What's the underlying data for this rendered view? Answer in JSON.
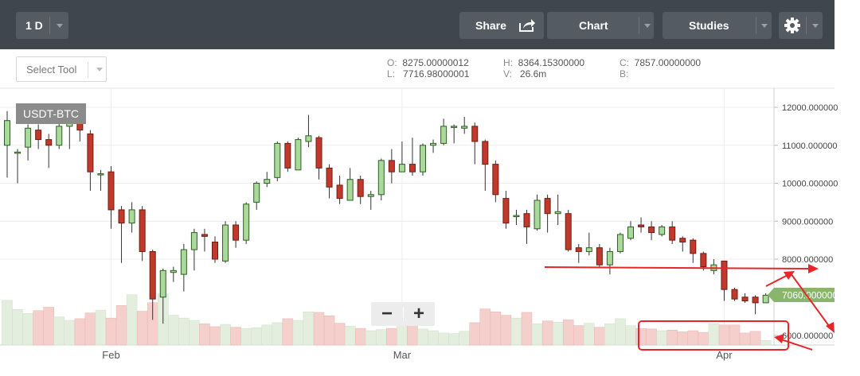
{
  "toolbar": {
    "interval_label": "1 D",
    "share_label": "Share",
    "chart_label": "Chart",
    "studies_label": "Studies"
  },
  "select_tool": {
    "placeholder": "Select Tool"
  },
  "ohlc": {
    "o_label": "O:",
    "o_value": "8275.00000012",
    "l_label": "L:",
    "l_value": "7716.98000001",
    "h_label": "H:",
    "h_value": "8364.15300000",
    "v_label": "V:",
    "v_value": "26.6m",
    "c_label": "C:",
    "c_value": "7857.00000000",
    "b_label": "B:",
    "b_value": ""
  },
  "zoom": {
    "minus": "−",
    "plus": "+"
  },
  "colors": {
    "up": "#a9d99b",
    "up_border": "#2f5e23",
    "down": "#c0392b",
    "down_border": "#6e1d14",
    "vol_up": "#e3eedf",
    "vol_down": "#f4cfcc",
    "annotation": "#e8262a",
    "badge": "#8ab56d"
  },
  "chart_data": {
    "type": "candlestick",
    "symbol": "USDT-BTC",
    "price_badge": "7060.000000",
    "y_ticks": [
      {
        "value": 12000,
        "label": "12000.000000"
      },
      {
        "value": 11000,
        "label": "11000.000000"
      },
      {
        "value": 10000,
        "label": "10000.000000"
      },
      {
        "value": 9000,
        "label": "9000.000000"
      },
      {
        "value": 8000,
        "label": "8000.000000"
      },
      {
        "value": 6000,
        "label": "6000.000000"
      }
    ],
    "x_labels": [
      {
        "index": 10,
        "label": "Feb"
      },
      {
        "index": 38,
        "label": "Mar"
      },
      {
        "index": 69,
        "label": "Apr"
      }
    ],
    "candles": [
      [
        11000,
        11650,
        10150,
        11900
      ],
      [
        10800,
        10820,
        10000,
        10900
      ],
      [
        10950,
        11450,
        10600,
        11550
      ],
      [
        11400,
        11150,
        10900,
        11550
      ],
      [
        11150,
        11000,
        10400,
        11300
      ],
      [
        11000,
        11500,
        10900,
        11600
      ],
      [
        11500,
        11600,
        10900,
        11700
      ],
      [
        11850,
        11400,
        11100,
        12000
      ],
      [
        11300,
        10300,
        9800,
        11400
      ],
      [
        10250,
        10250,
        9800,
        10350
      ],
      [
        10300,
        9300,
        8800,
        10450
      ],
      [
        9300,
        8950,
        7900,
        9400
      ],
      [
        8950,
        9300,
        8700,
        9500
      ],
      [
        9300,
        8200,
        7950,
        9400
      ],
      [
        8200,
        6950,
        6400,
        8250
      ],
      [
        7000,
        7700,
        6300,
        7750
      ],
      [
        7650,
        7700,
        7400,
        7800
      ],
      [
        7600,
        8250,
        7150,
        8400
      ],
      [
        8250,
        8700,
        7700,
        8800
      ],
      [
        8650,
        8600,
        8200,
        8800
      ],
      [
        8450,
        8000,
        7900,
        8600
      ],
      [
        7950,
        8900,
        7900,
        9000
      ],
      [
        8900,
        8500,
        8300,
        9000
      ],
      [
        8500,
        9450,
        8400,
        9500
      ],
      [
        9500,
        10000,
        9300,
        10050
      ],
      [
        10000,
        10100,
        9900,
        10300
      ],
      [
        10150,
        11050,
        10050,
        11100
      ],
      [
        11050,
        10400,
        10300,
        11100
      ],
      [
        10350,
        11150,
        10350,
        11200
      ],
      [
        11100,
        11250,
        10950,
        11800
      ],
      [
        11200,
        10400,
        10100,
        11250
      ],
      [
        10400,
        9900,
        9600,
        10500
      ],
      [
        9950,
        9600,
        9450,
        10200
      ],
      [
        9550,
        10100,
        9550,
        10400
      ],
      [
        10100,
        9650,
        9450,
        10200
      ],
      [
        9650,
        9700,
        9300,
        9800
      ],
      [
        9700,
        10600,
        9550,
        10650
      ],
      [
        10600,
        10300,
        10000,
        10900
      ],
      [
        10300,
        10500,
        10300,
        11100
      ],
      [
        10500,
        10300,
        10200,
        11200
      ],
      [
        10300,
        11000,
        10200,
        11050
      ],
      [
        11000,
        11050,
        10800,
        11150
      ],
      [
        11050,
        11500,
        11000,
        11700
      ],
      [
        11500,
        11500,
        11050,
        11550
      ],
      [
        11450,
        11500,
        11300,
        11750
      ],
      [
        11500,
        11100,
        10500,
        11600
      ],
      [
        11100,
        10500,
        9800,
        11150
      ],
      [
        10500,
        9700,
        9500,
        10600
      ],
      [
        9600,
        8950,
        8800,
        9800
      ],
      [
        9150,
        9150,
        8900,
        9300
      ],
      [
        9200,
        8850,
        8400,
        9300
      ],
      [
        8800,
        9550,
        8750,
        9700
      ],
      [
        9600,
        9200,
        8700,
        9700
      ],
      [
        9200,
        9250,
        8900,
        9700
      ],
      [
        9200,
        8250,
        8200,
        9300
      ],
      [
        8300,
        8200,
        7900,
        8400
      ],
      [
        8200,
        8300,
        8100,
        8700
      ],
      [
        8300,
        7850,
        7800,
        8400
      ],
      [
        7850,
        8200,
        7600,
        8300
      ],
      [
        8200,
        8650,
        8150,
        8700
      ],
      [
        8550,
        8850,
        8500,
        9000
      ],
      [
        8900,
        8850,
        8700,
        9100
      ],
      [
        8850,
        8700,
        8500,
        9000
      ],
      [
        8650,
        8850,
        8600,
        8900
      ],
      [
        8850,
        8500,
        8400,
        9000
      ],
      [
        8550,
        8450,
        8200,
        8600
      ],
      [
        8500,
        8150,
        7900,
        8550
      ],
      [
        8150,
        7800,
        7700,
        8200
      ],
      [
        7700,
        7850,
        7600,
        8000
      ],
      [
        7950,
        7200,
        6900,
        7950
      ],
      [
        7200,
        6950,
        6900,
        7250
      ],
      [
        7000,
        6900,
        6850,
        7100
      ],
      [
        7000,
        6850,
        6550,
        7050
      ],
      [
        6850,
        7050,
        6900,
        7100
      ]
    ],
    "volume": [
      0.78,
      0.62,
      0.55,
      0.6,
      0.66,
      0.49,
      0.43,
      0.46,
      0.56,
      0.61,
      0.47,
      0.69,
      0.88,
      0.59,
      0.74,
      0.89,
      0.52,
      0.47,
      0.43,
      0.37,
      0.32,
      0.36,
      0.31,
      0.29,
      0.3,
      0.35,
      0.39,
      0.46,
      0.43,
      0.58,
      0.57,
      0.51,
      0.38,
      0.33,
      0.29,
      0.25,
      0.27,
      0.29,
      0.35,
      0.41,
      0.28,
      0.25,
      0.21,
      0.2,
      0.24,
      0.39,
      0.63,
      0.58,
      0.52,
      0.47,
      0.57,
      0.37,
      0.42,
      0.4,
      0.44,
      0.34,
      0.38,
      0.31,
      0.37,
      0.46,
      0.34,
      0.29,
      0.28,
      0.25,
      0.26,
      0.23,
      0.25,
      0.22,
      0.37,
      0.35,
      0.35,
      0.21,
      0.24,
      0.08
    ]
  }
}
